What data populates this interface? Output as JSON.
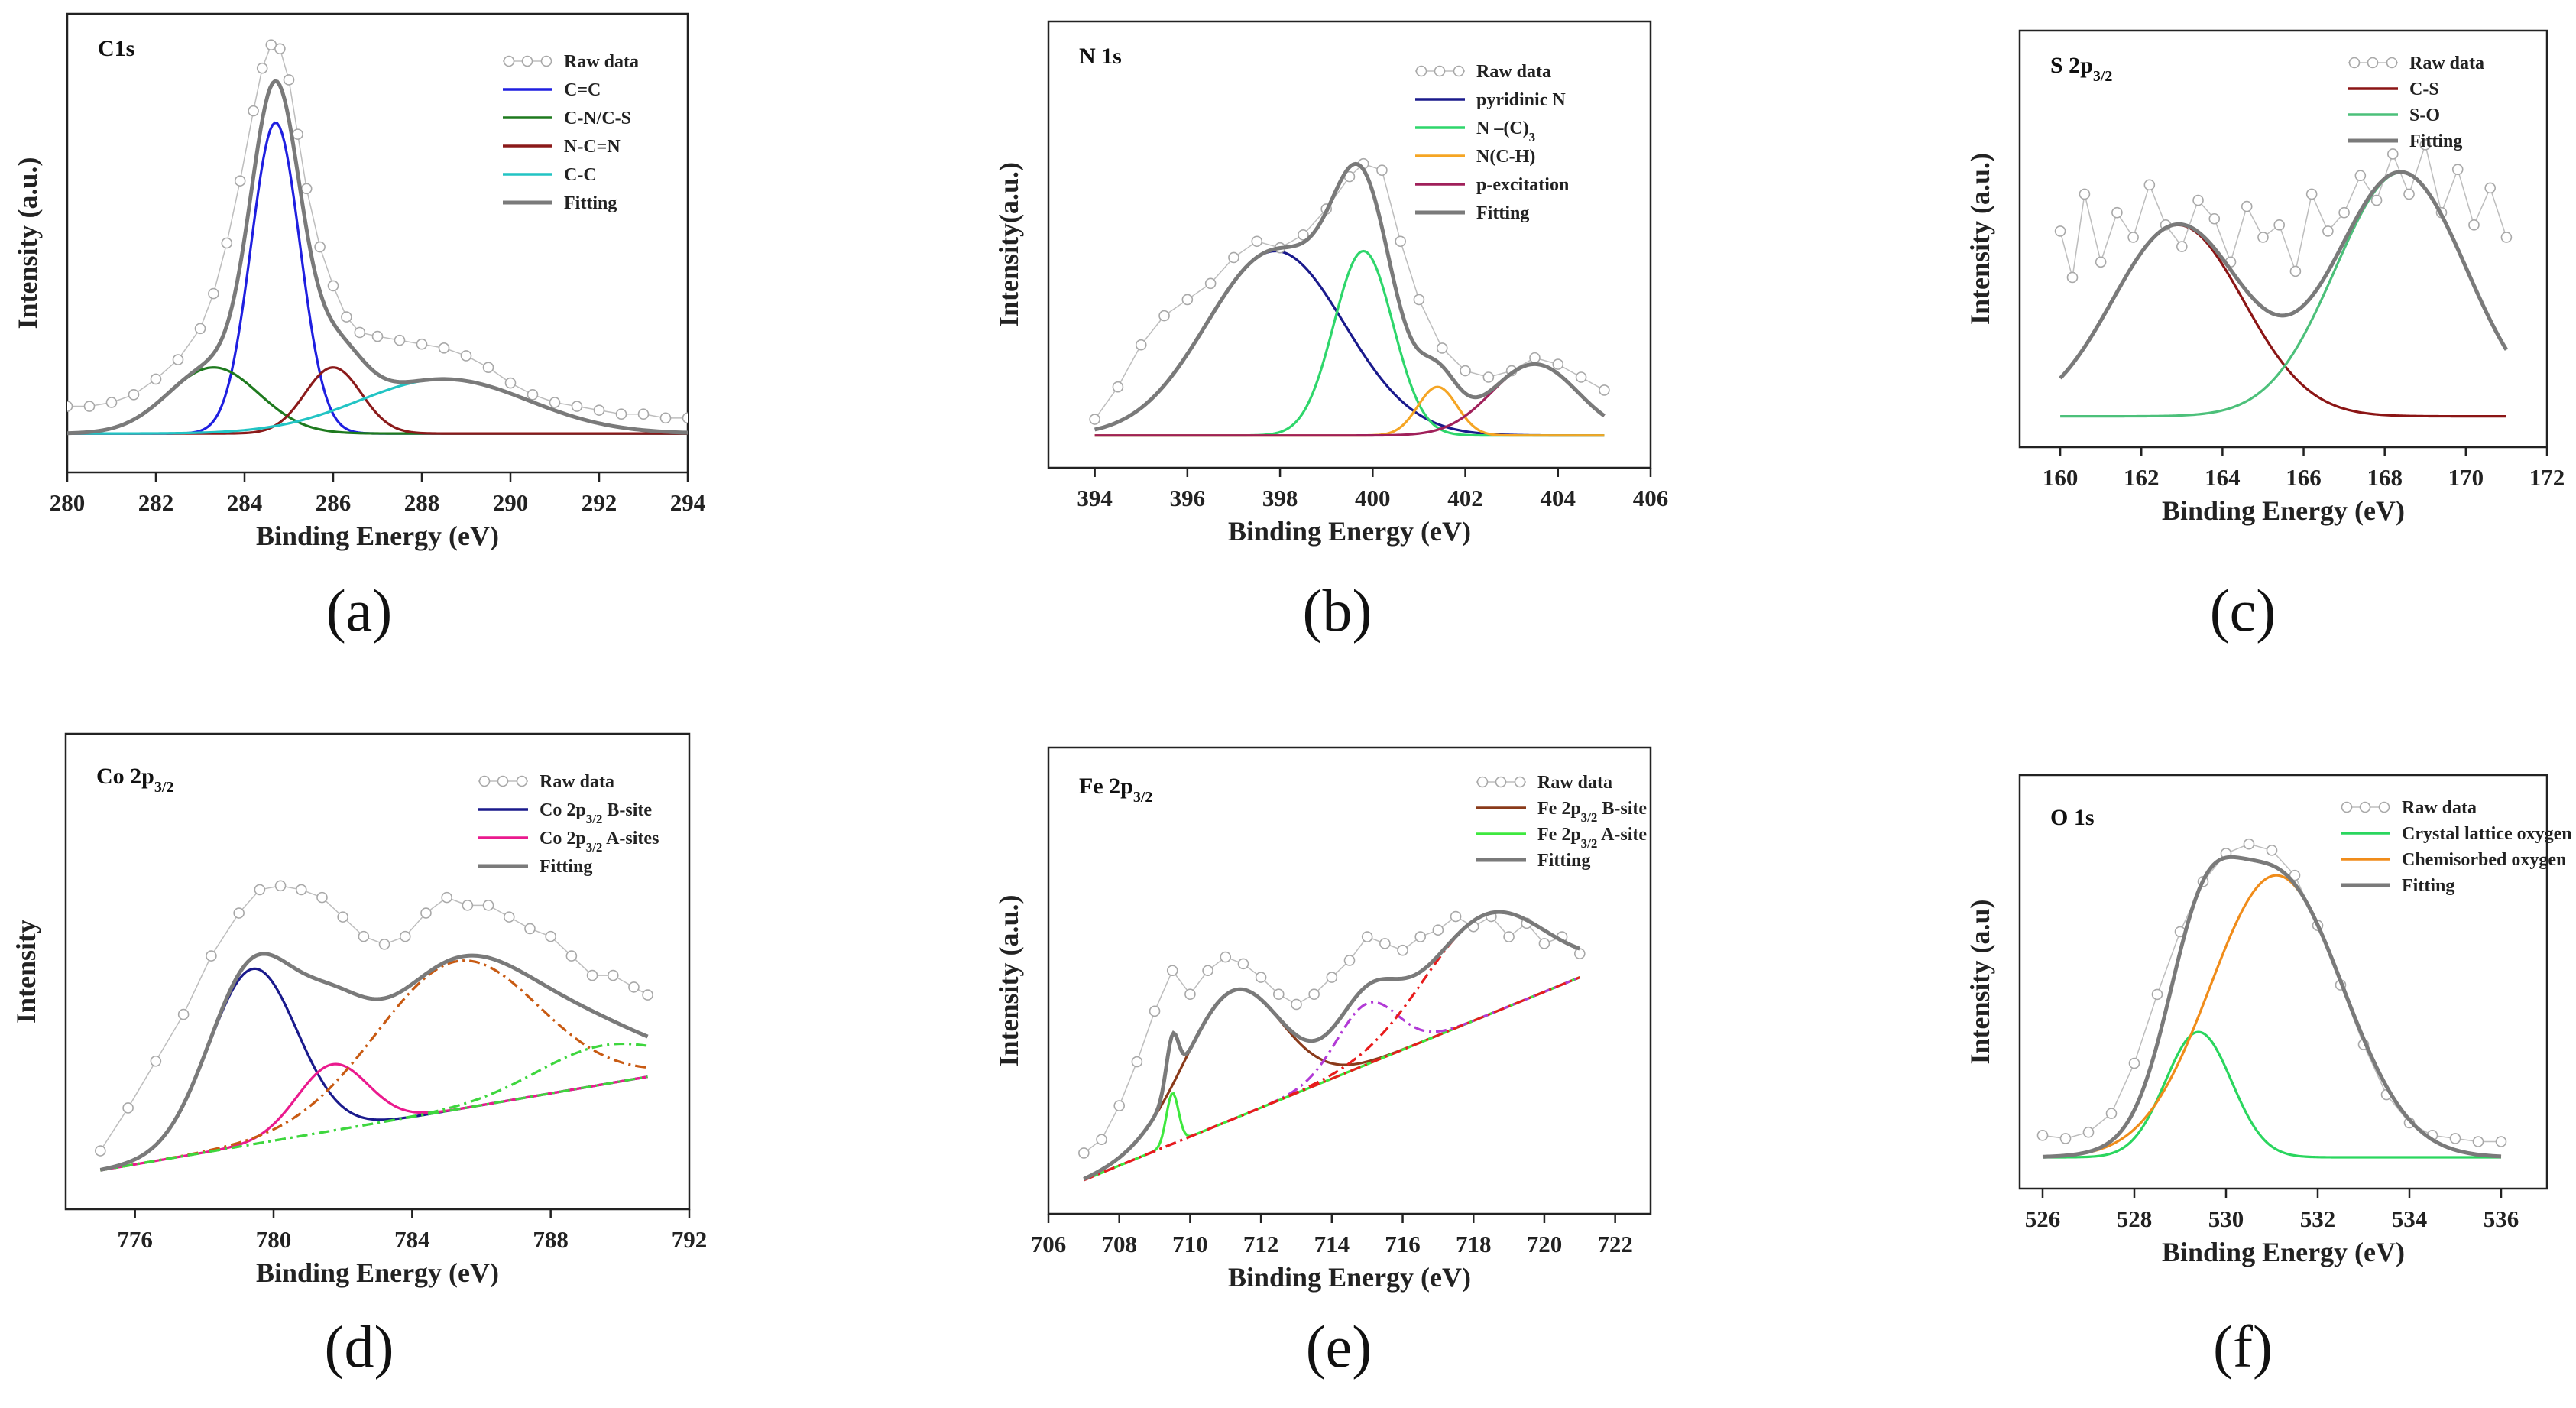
{
  "chart_data": [
    {
      "type": "line",
      "panel_tag": "(a)",
      "title": "C1s",
      "title_sub": "",
      "xlabel": "Binding Energy (eV)",
      "ylabel": "Intensity (a.u.)",
      "xlim": [
        280,
        294
      ],
      "xticks": [
        280,
        282,
        284,
        286,
        288,
        290,
        292,
        294
      ],
      "raw_data": {
        "name": "Raw data",
        "x": [
          280.0,
          280.5,
          281.0,
          281.5,
          282.0,
          282.5,
          283.0,
          283.3,
          283.6,
          283.9,
          284.2,
          284.4,
          284.6,
          284.8,
          285.0,
          285.2,
          285.4,
          285.7,
          286.0,
          286.3,
          286.6,
          287.0,
          287.5,
          288.0,
          288.5,
          289.0,
          289.5,
          290.0,
          290.5,
          291.0,
          291.5,
          292.0,
          292.5,
          293.0,
          293.5,
          294.0
        ],
        "y": [
          0.07,
          0.07,
          0.08,
          0.1,
          0.14,
          0.19,
          0.27,
          0.36,
          0.49,
          0.65,
          0.83,
          0.94,
          1.0,
          0.99,
          0.91,
          0.77,
          0.63,
          0.48,
          0.38,
          0.3,
          0.26,
          0.25,
          0.24,
          0.23,
          0.22,
          0.2,
          0.17,
          0.13,
          0.1,
          0.08,
          0.07,
          0.06,
          0.05,
          0.05,
          0.04,
          0.04
        ]
      },
      "components": [
        {
          "name": "C=C",
          "color": "#1f1fe0",
          "dash": "solid",
          "center": 284.7,
          "fwhm": 1.3,
          "height": 0.8
        },
        {
          "name": "C-N/C-S",
          "color": "#1e7a1e",
          "dash": "solid",
          "center": 283.3,
          "fwhm": 2.4,
          "height": 0.17
        },
        {
          "name": "N-C=N",
          "color": "#8b1a1a",
          "dash": "solid",
          "center": 286.0,
          "fwhm": 1.5,
          "height": 0.17
        },
        {
          "name": "C-C",
          "color": "#22c4c4",
          "dash": "solid",
          "center": 288.5,
          "fwhm": 4.5,
          "height": 0.14
        }
      ],
      "fitting": {
        "name": "Fitting",
        "color": "#7a7a7a"
      },
      "baseline": 0.0,
      "legend": "top-right"
    },
    {
      "type": "line",
      "panel_tag": "(b)",
      "title": "N 1s",
      "title_sub": "",
      "xlabel": "Binding Energy (eV)",
      "ylabel": "Intensity(a.u.)",
      "xlim": [
        393,
        406
      ],
      "xticks": [
        394,
        396,
        398,
        400,
        402,
        404,
        406
      ],
      "raw_data": {
        "name": "Raw data",
        "x": [
          394.0,
          394.5,
          395.0,
          395.5,
          396.0,
          396.5,
          397.0,
          397.5,
          398.0,
          398.5,
          399.0,
          399.5,
          399.8,
          400.2,
          400.6,
          401.0,
          401.5,
          402.0,
          402.5,
          403.0,
          403.5,
          404.0,
          404.5,
          405.0
        ],
        "y": [
          0.05,
          0.15,
          0.28,
          0.37,
          0.42,
          0.47,
          0.55,
          0.6,
          0.58,
          0.62,
          0.7,
          0.8,
          0.84,
          0.82,
          0.6,
          0.42,
          0.27,
          0.2,
          0.18,
          0.2,
          0.24,
          0.22,
          0.18,
          0.14
        ]
      },
      "components": [
        {
          "name": "pyridinic N",
          "color": "#1a1a8c",
          "dash": "solid",
          "center": 397.9,
          "fwhm": 3.5,
          "height": 0.57
        },
        {
          "name": "N –(C)",
          "sub": "3",
          "color": "#2ed66b",
          "dash": "solid",
          "center": 399.8,
          "fwhm": 1.5,
          "height": 0.57
        },
        {
          "name": "N(C-H)",
          "color": "#f5a524",
          "dash": "solid",
          "center": 401.4,
          "fwhm": 1.0,
          "height": 0.15
        },
        {
          "name": "p-excitation",
          "color": "#a0205a",
          "dash": "solid",
          "center": 403.5,
          "fwhm": 2.2,
          "height": 0.22
        }
      ],
      "fitting": {
        "name": "Fitting",
        "color": "#7a7a7a"
      },
      "baseline": 0.0,
      "legend": "top-right"
    },
    {
      "type": "line",
      "panel_tag": "(c)",
      "title": "S 2p",
      "title_sub": "3/2",
      "xlabel": "Binding Energy (eV)",
      "ylabel": "Intensity (a.u.)",
      "xlim": [
        159,
        172
      ],
      "xticks": [
        160,
        162,
        164,
        166,
        168,
        170,
        172
      ],
      "raw_data": {
        "name": "Raw data",
        "x": [
          160.0,
          160.3,
          160.6,
          161.0,
          161.4,
          161.8,
          162.2,
          162.6,
          163.0,
          163.4,
          163.8,
          164.2,
          164.6,
          165.0,
          165.4,
          165.8,
          166.2,
          166.6,
          167.0,
          167.4,
          167.8,
          168.2,
          168.6,
          169.0,
          169.4,
          169.8,
          170.2,
          170.6,
          171.0
        ],
        "y": [
          0.6,
          0.45,
          0.72,
          0.5,
          0.66,
          0.58,
          0.75,
          0.62,
          0.55,
          0.7,
          0.64,
          0.5,
          0.68,
          0.58,
          0.62,
          0.47,
          0.72,
          0.6,
          0.66,
          0.78,
          0.7,
          0.85,
          0.72,
          0.88,
          0.66,
          0.8,
          0.62,
          0.74,
          0.58
        ]
      },
      "components": [
        {
          "name": "C-S",
          "color": "#8b1515",
          "dash": "solid",
          "center": 162.9,
          "fwhm": 3.8,
          "height": 0.62
        },
        {
          "name": "S-O",
          "color": "#4cc07a",
          "dash": "solid",
          "center": 168.4,
          "fwhm": 3.8,
          "height": 0.79
        }
      ],
      "fitting": {
        "name": "Fitting",
        "color": "#7a7a7a"
      },
      "baseline": 0.0,
      "legend": "top-right"
    },
    {
      "type": "line",
      "panel_tag": "(d)",
      "title": "Co 2p",
      "title_sub": "3/2",
      "xlabel": "Binding Energy (eV)",
      "ylabel": "Intensity",
      "xlim": [
        774,
        792
      ],
      "xticks": [
        776,
        780,
        784,
        788,
        792
      ],
      "raw_data": {
        "name": "Raw data",
        "x": [
          775.0,
          775.8,
          776.6,
          777.4,
          778.2,
          779.0,
          779.6,
          780.2,
          780.8,
          781.4,
          782.0,
          782.6,
          783.2,
          783.8,
          784.4,
          785.0,
          785.6,
          786.2,
          786.8,
          787.4,
          788.0,
          788.6,
          789.2,
          789.8,
          790.4,
          790.8
        ],
        "y": [
          0.05,
          0.16,
          0.28,
          0.4,
          0.55,
          0.66,
          0.72,
          0.73,
          0.72,
          0.7,
          0.65,
          0.6,
          0.58,
          0.6,
          0.66,
          0.7,
          0.68,
          0.68,
          0.65,
          0.62,
          0.6,
          0.55,
          0.5,
          0.5,
          0.47,
          0.45
        ]
      },
      "components": [
        {
          "name": "Co 2p",
          "sub": "3/2",
          "suffix": " B-site",
          "color": "#1a1a8c",
          "dash": "solid",
          "center": 779.4,
          "fwhm": 3.0,
          "height": 0.45
        },
        {
          "name": "Co 2p",
          "sub": "3/2",
          "suffix": " A-sites",
          "color": "#ea1a8e",
          "dash": "solid",
          "center": 781.7,
          "fwhm": 2.4,
          "height": 0.17
        },
        {
          "name": "",
          "color": "#c85a12",
          "dash": "dashdot",
          "center": 785.3,
          "fwhm": 5.5,
          "height": 0.38,
          "legend": false
        },
        {
          "name": "",
          "color": "#3ed63e",
          "dash": "dashdot",
          "center": 789.5,
          "fwhm": 4.5,
          "height": 0.1,
          "legend": false
        }
      ],
      "fitting": {
        "name": "Fitting",
        "color": "#7a7a7a"
      },
      "baseline": {
        "x0": 775.0,
        "x1": 790.8,
        "y0": 0.0,
        "y1": 0.24
      },
      "legend": "top-right"
    },
    {
      "type": "line",
      "panel_tag": "(e)",
      "title": "Fe 2p",
      "title_sub": "3/2",
      "xlabel": "Binding Energy (eV)",
      "ylabel": "Intensity (a.u.)",
      "xlim": [
        706,
        723
      ],
      "xticks": [
        706,
        708,
        710,
        712,
        714,
        716,
        718,
        720,
        722
      ],
      "raw_data": {
        "name": "Raw data",
        "x": [
          707.0,
          707.5,
          708.0,
          708.5,
          709.0,
          709.5,
          710.0,
          710.5,
          711.0,
          711.5,
          712.0,
          712.5,
          713.0,
          713.5,
          714.0,
          714.5,
          715.0,
          715.5,
          716.0,
          716.5,
          717.0,
          717.5,
          718.0,
          718.5,
          719.0,
          719.5,
          720.0,
          720.5,
          721.0
        ],
        "y": [
          0.08,
          0.12,
          0.22,
          0.35,
          0.5,
          0.62,
          0.55,
          0.62,
          0.66,
          0.64,
          0.6,
          0.55,
          0.52,
          0.55,
          0.6,
          0.65,
          0.72,
          0.7,
          0.68,
          0.72,
          0.74,
          0.78,
          0.75,
          0.78,
          0.72,
          0.76,
          0.7,
          0.72,
          0.67
        ]
      },
      "components": [
        {
          "name": "Fe 2p",
          "sub": "3/2",
          "suffix": " B-site",
          "color": "#8a3a1a",
          "dash": "solid",
          "center": 711.2,
          "fwhm": 3.2,
          "height": 0.38
        },
        {
          "name": "Fe 2p",
          "sub": "3/2",
          "suffix": " A-site",
          "color": "#3ee83e",
          "dash": "solid",
          "center": 709.5,
          "fwhm": 0.4,
          "height": 0.15
        },
        {
          "name": "",
          "color": "#b23ad6",
          "dash": "dashdot",
          "center": 715.0,
          "fwhm": 2.0,
          "height": 0.18,
          "legend": false
        },
        {
          "name": "",
          "color": "#e81c1c",
          "dash": "dashdot",
          "center": 718.3,
          "fwhm": 4.0,
          "height": 0.3,
          "legend": false
        }
      ],
      "fitting": {
        "name": "Fitting",
        "color": "#7a7a7a"
      },
      "baseline": {
        "x0": 707.0,
        "x1": 721.0,
        "y0": 0.0,
        "y1": 0.6
      },
      "legend": "top-right"
    },
    {
      "type": "line",
      "panel_tag": "(f)",
      "title": "O 1s",
      "title_sub": "",
      "xlabel": "Binding Energy (eV)",
      "ylabel": "Intensity (a.u)",
      "xlim": [
        525.5,
        537
      ],
      "xticks": [
        526,
        528,
        530,
        532,
        534,
        536
      ],
      "raw_data": {
        "name": "Raw data",
        "x": [
          526.0,
          526.5,
          527.0,
          527.5,
          528.0,
          528.5,
          529.0,
          529.5,
          530.0,
          530.5,
          531.0,
          531.5,
          532.0,
          532.5,
          533.0,
          533.5,
          534.0,
          534.5,
          535.0,
          535.5,
          536.0
        ],
        "y": [
          0.07,
          0.06,
          0.08,
          0.14,
          0.3,
          0.52,
          0.72,
          0.88,
          0.97,
          1.0,
          0.98,
          0.9,
          0.74,
          0.55,
          0.36,
          0.2,
          0.11,
          0.07,
          0.06,
          0.05,
          0.05
        ]
      },
      "components": [
        {
          "name": "Crystal lattice oxygen",
          "color": "#2ad65e",
          "dash": "solid",
          "center": 529.4,
          "fwhm": 1.7,
          "height": 0.4
        },
        {
          "name": "Chemisorbed oxygen",
          "color": "#f08c1a",
          "dash": "solid",
          "center": 531.1,
          "fwhm": 3.4,
          "height": 0.9
        }
      ],
      "fitting": {
        "name": "Fitting",
        "color": "#7a7a7a"
      },
      "baseline": 0.0,
      "legend": "top-right"
    }
  ]
}
